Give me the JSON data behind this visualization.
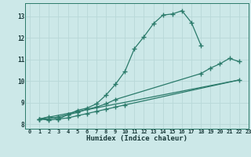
{
  "background_color": "#cce8e8",
  "grid_color": "#b8d8d8",
  "line_color": "#2a7a6a",
  "xlabel": "Humidex (Indice chaleur)",
  "xlim": [
    -0.5,
    23
  ],
  "ylim": [
    7.8,
    13.6
  ],
  "yticks": [
    8,
    9,
    10,
    11,
    12,
    13
  ],
  "xticks": [
    0,
    1,
    2,
    3,
    4,
    5,
    6,
    7,
    8,
    9,
    10,
    11,
    12,
    13,
    14,
    15,
    16,
    17,
    18,
    19,
    20,
    21,
    22,
    23
  ],
  "line1_x": [
    1,
    2,
    3,
    4,
    5,
    6,
    7,
    8,
    9,
    10,
    11,
    12,
    13,
    14,
    15,
    16,
    17,
    18
  ],
  "line1_y": [
    8.25,
    8.35,
    8.25,
    8.45,
    8.65,
    8.75,
    8.95,
    9.35,
    9.85,
    10.45,
    11.5,
    12.05,
    12.65,
    13.05,
    13.1,
    13.25,
    12.7,
    11.65
  ],
  "line2_x": [
    1,
    2,
    3,
    4,
    5,
    6,
    7,
    8,
    9,
    18,
    19,
    20,
    21,
    22
  ],
  "line2_y": [
    8.25,
    8.25,
    8.35,
    8.45,
    8.55,
    8.7,
    8.8,
    8.95,
    9.15,
    10.35,
    10.6,
    10.8,
    11.05,
    10.9
  ],
  "line3_x": [
    1,
    2,
    3,
    4,
    5,
    6,
    7,
    8,
    9,
    10,
    22
  ],
  "line3_y": [
    8.25,
    8.2,
    8.25,
    8.3,
    8.4,
    8.5,
    8.6,
    8.7,
    8.8,
    8.9,
    10.05
  ],
  "line4_x": [
    1,
    22
  ],
  "line4_y": [
    8.25,
    10.05
  ]
}
